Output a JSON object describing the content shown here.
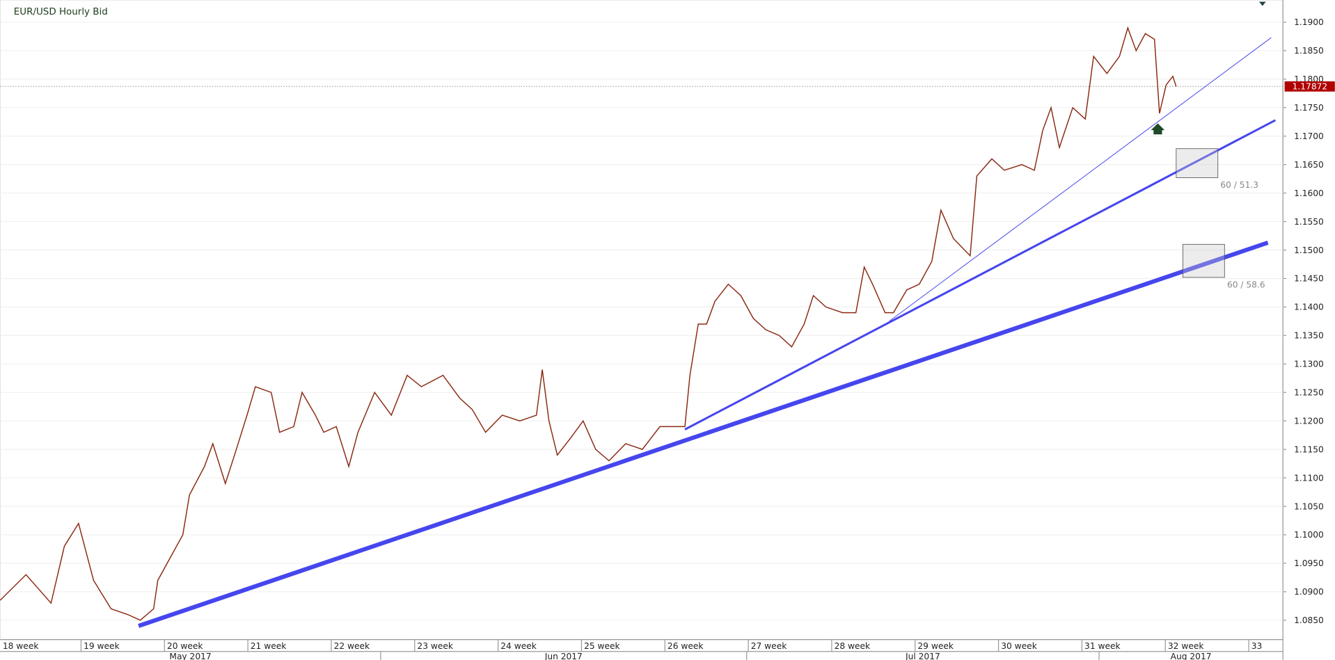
{
  "chart_data": {
    "type": "line",
    "title": "EUR/USD  Hourly Bid",
    "x": [
      18.03,
      18.34,
      18.64,
      18.8,
      18.97,
      19.15,
      19.36,
      19.56,
      19.71,
      19.87,
      19.92,
      20.07,
      20.22,
      20.3,
      20.48,
      20.58,
      20.73,
      20.84,
      20.99,
      21.09,
      21.28,
      21.38,
      21.55,
      21.65,
      21.81,
      21.91,
      22.06,
      22.21,
      22.32,
      22.52,
      22.72,
      22.91,
      23.08,
      23.34,
      23.54,
      23.69,
      23.85,
      24.05,
      24.26,
      24.46,
      24.53,
      24.61,
      24.71,
      24.87,
      25.02,
      25.17,
      25.33,
      25.53,
      25.73,
      25.94,
      26.14,
      26.24,
      26.3,
      26.4,
      26.5,
      26.6,
      26.76,
      26.91,
      27.06,
      27.21,
      27.37,
      27.52,
      27.67,
      27.78,
      27.93,
      28.13,
      28.29,
      28.39,
      28.49,
      28.64,
      28.74,
      28.9,
      29.05,
      29.2,
      29.31,
      29.46,
      29.66,
      29.74,
      29.92,
      30.07,
      30.28,
      30.43,
      30.53,
      30.63,
      30.73,
      30.89,
      31.04,
      31.14,
      31.3,
      31.45,
      31.55,
      31.65,
      31.76,
      31.87,
      31.93,
      32.01,
      32.09,
      32.13
    ],
    "series": [
      {
        "name": "EUR/USD",
        "color": "#8a2a12",
        "values": [
          1.0885,
          1.093,
          1.088,
          1.098,
          1.102,
          1.092,
          1.087,
          1.086,
          1.085,
          1.087,
          1.092,
          1.096,
          1.1,
          1.107,
          1.112,
          1.116,
          1.109,
          1.114,
          1.121,
          1.126,
          1.125,
          1.118,
          1.119,
          1.125,
          1.121,
          1.118,
          1.119,
          1.112,
          1.118,
          1.125,
          1.121,
          1.128,
          1.126,
          1.128,
          1.124,
          1.122,
          1.118,
          1.121,
          1.12,
          1.121,
          1.129,
          1.12,
          1.114,
          1.117,
          1.12,
          1.115,
          1.113,
          1.116,
          1.115,
          1.119,
          1.119,
          1.119,
          1.128,
          1.137,
          1.137,
          1.141,
          1.144,
          1.142,
          1.138,
          1.136,
          1.135,
          1.133,
          1.137,
          1.142,
          1.14,
          1.139,
          1.139,
          1.147,
          1.144,
          1.139,
          1.139,
          1.143,
          1.144,
          1.148,
          1.157,
          1.152,
          1.149,
          1.163,
          1.166,
          1.164,
          1.165,
          1.164,
          1.171,
          1.175,
          1.168,
          1.175,
          1.173,
          1.184,
          1.181,
          1.184,
          1.189,
          1.185,
          1.188,
          1.187,
          1.174,
          1.179,
          1.1805,
          1.17872
        ]
      }
    ],
    "xlim": [
      18.03,
      33.41
    ],
    "xticks": [
      {
        "value": 18,
        "label": "18 week"
      },
      {
        "value": 19,
        "label": "19 week"
      },
      {
        "value": 20,
        "label": "20 week"
      },
      {
        "value": 21,
        "label": "21 week"
      },
      {
        "value": 22,
        "label": "22 week"
      },
      {
        "value": 23,
        "label": "23 week"
      },
      {
        "value": 24,
        "label": "24 week"
      },
      {
        "value": 25,
        "label": "25 week"
      },
      {
        "value": 26,
        "label": "26 week"
      },
      {
        "value": 27,
        "label": "27 week"
      },
      {
        "value": 28,
        "label": "28 week"
      },
      {
        "value": 29,
        "label": "29 week"
      },
      {
        "value": 30,
        "label": "30 week"
      },
      {
        "value": 31,
        "label": "31 week"
      },
      {
        "value": 32,
        "label": "32 week"
      },
      {
        "value": 33,
        "label": "33"
      }
    ],
    "months": [
      "May 2017",
      "Jun 2017",
      "Jul 2017",
      "Aug 2017"
    ],
    "ylim": [
      1.0816,
      1.1939
    ],
    "yticks": [
      {
        "value": 1.085,
        "label": "1.0850"
      },
      {
        "value": 1.09,
        "label": "1.0900"
      },
      {
        "value": 1.095,
        "label": "1.0950"
      },
      {
        "value": 1.1,
        "label": "1.1000"
      },
      {
        "value": 1.105,
        "label": "1.1050"
      },
      {
        "value": 1.11,
        "label": "1.1100"
      },
      {
        "value": 1.115,
        "label": "1.1150"
      },
      {
        "value": 1.12,
        "label": "1.1200"
      },
      {
        "value": 1.125,
        "label": "1.1250"
      },
      {
        "value": 1.13,
        "label": "1.1300"
      },
      {
        "value": 1.135,
        "label": "1.1350"
      },
      {
        "value": 1.14,
        "label": "1.1400"
      },
      {
        "value": 1.145,
        "label": "1.1450"
      },
      {
        "value": 1.15,
        "label": "1.1500"
      },
      {
        "value": 1.155,
        "label": "1.1550"
      },
      {
        "value": 1.16,
        "label": "1.1600"
      },
      {
        "value": 1.165,
        "label": "1.1650"
      },
      {
        "value": 1.17,
        "label": "1.1700"
      },
      {
        "value": 1.175,
        "label": "1.1750"
      },
      {
        "value": 1.18,
        "label": "1.1800"
      },
      {
        "value": 1.185,
        "label": "1.1850"
      },
      {
        "value": 1.19,
        "label": "1.1900"
      }
    ],
    "grid": true,
    "last_price": 1.17872,
    "last_price_color": "#b00000",
    "trendlines": [
      {
        "x": [
          19.69,
          33.23
        ],
        "y": [
          1.084,
          1.1513
        ],
        "color": "#4646ee",
        "width": 5
      },
      {
        "x": [
          26.24,
          33.32
        ],
        "y": [
          1.1185,
          1.1728
        ],
        "color": "#4646ee",
        "width": 2.5
      },
      {
        "x": [
          28.69,
          33.27
        ],
        "y": [
          1.1375,
          1.1873
        ],
        "color": "#4646ee",
        "width": 0.8
      }
    ],
    "boxes": [
      {
        "x": [
          32.13,
          32.63
        ],
        "y": [
          1.1678,
          1.1627
        ],
        "label": "60 / 51.3"
      },
      {
        "x": [
          32.21,
          32.71
        ],
        "y": [
          1.151,
          1.1452
        ],
        "label": "60 / 58.6"
      }
    ]
  }
}
